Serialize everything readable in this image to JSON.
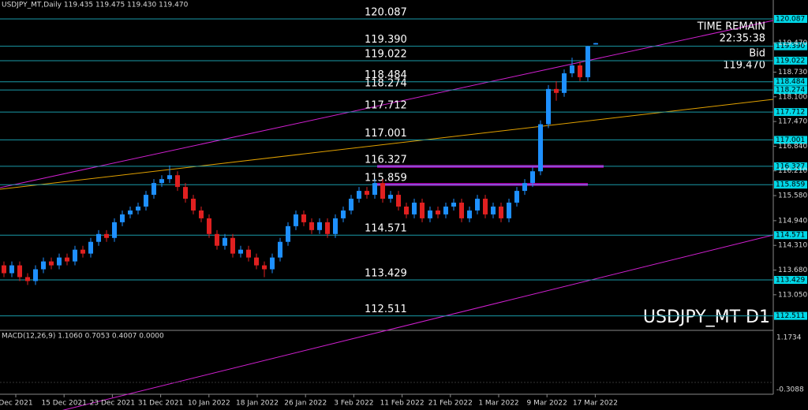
{
  "header": {
    "title": "USDJPY_MT,Daily  119.435 119.475 119.430 119.470",
    "time_remain_label": "TIME REMAIN",
    "time_remain": "22:35:38",
    "bid_label": "Bid",
    "bid": "119.470",
    "symbol": "USDJPY_MT D1"
  },
  "levels": [
    "120.087",
    "119.390",
    "119.022",
    "118.484",
    "118.274",
    "117.712",
    "117.001",
    "116.327",
    "115.859",
    "114.571",
    "113.429",
    "112.511"
  ],
  "axis_prices": [
    "119.470",
    "118.730",
    "118.100",
    "117.470",
    "116.840",
    "116.210",
    "115.580",
    "114.940",
    "114.310",
    "113.680",
    "113.050"
  ],
  "macd": {
    "label": "MACD(12,26,9) 1.1060 0.7053 0.4007 0.0000",
    "axis": [
      "1.1734",
      "-0.3088"
    ]
  },
  "dates": [
    "Dec 2021",
    "15 Dec 2021",
    "23 Dec 2021",
    "31 Dec 2021",
    "10 Jan 2022",
    "18 Jan 2022",
    "26 Jan 2022",
    "3 Feb 2022",
    "11 Feb 2022",
    "21 Feb 2022",
    "1 Mar 2022",
    "9 Mar 2022",
    "17 Mar 2022"
  ],
  "candles": [
    [
      113.8,
      113.9,
      113.5,
      113.6
    ],
    [
      113.6,
      113.9,
      113.5,
      113.8
    ],
    [
      113.8,
      113.9,
      113.4,
      113.5
    ],
    [
      113.5,
      113.6,
      113.3,
      113.4
    ],
    [
      113.4,
      113.8,
      113.3,
      113.7
    ],
    [
      113.7,
      114.0,
      113.6,
      113.9
    ],
    [
      113.9,
      114.0,
      113.7,
      113.8
    ],
    [
      113.8,
      114.1,
      113.7,
      114.0
    ],
    [
      114.0,
      114.1,
      113.8,
      113.9
    ],
    [
      113.9,
      114.3,
      113.8,
      114.2
    ],
    [
      114.2,
      114.3,
      114.0,
      114.1
    ],
    [
      114.1,
      114.5,
      114.0,
      114.4
    ],
    [
      114.4,
      114.7,
      114.3,
      114.6
    ],
    [
      114.6,
      114.7,
      114.4,
      114.5
    ],
    [
      114.5,
      115.0,
      114.4,
      114.9
    ],
    [
      114.9,
      115.2,
      114.8,
      115.1
    ],
    [
      115.1,
      115.3,
      115.0,
      115.2
    ],
    [
      115.2,
      115.4,
      115.1,
      115.3
    ],
    [
      115.3,
      115.7,
      115.2,
      115.6
    ],
    [
      115.6,
      116.0,
      115.5,
      115.9
    ],
    [
      115.9,
      116.1,
      115.8,
      116.0
    ],
    [
      116.0,
      116.35,
      115.9,
      116.1
    ],
    [
      116.1,
      116.2,
      115.7,
      115.8
    ],
    [
      115.8,
      115.9,
      115.4,
      115.5
    ],
    [
      115.5,
      115.6,
      115.1,
      115.2
    ],
    [
      115.2,
      115.3,
      114.9,
      115.0
    ],
    [
      115.0,
      115.1,
      114.5,
      114.6
    ],
    [
      114.6,
      114.7,
      114.2,
      114.3
    ],
    [
      114.3,
      114.6,
      114.2,
      114.5
    ],
    [
      114.5,
      114.6,
      114.0,
      114.1
    ],
    [
      114.1,
      114.3,
      114.0,
      114.2
    ],
    [
      114.2,
      114.3,
      113.9,
      114.0
    ],
    [
      114.0,
      114.1,
      113.7,
      113.8
    ],
    [
      113.8,
      113.9,
      113.5,
      113.7
    ],
    [
      113.7,
      114.1,
      113.6,
      114.0
    ],
    [
      114.0,
      114.5,
      113.9,
      114.4
    ],
    [
      114.4,
      114.9,
      114.3,
      114.8
    ],
    [
      114.8,
      115.2,
      114.7,
      115.1
    ],
    [
      115.1,
      115.2,
      114.8,
      114.9
    ],
    [
      114.9,
      115.0,
      114.6,
      114.7
    ],
    [
      114.7,
      115.0,
      114.6,
      114.9
    ],
    [
      114.9,
      115.0,
      114.5,
      114.6
    ],
    [
      114.6,
      115.1,
      114.5,
      115.0
    ],
    [
      115.0,
      115.3,
      114.9,
      115.2
    ],
    [
      115.2,
      115.6,
      115.1,
      115.5
    ],
    [
      115.5,
      115.8,
      115.4,
      115.7
    ],
    [
      115.7,
      115.8,
      115.5,
      115.6
    ],
    [
      115.6,
      116.0,
      115.5,
      115.9
    ],
    [
      115.9,
      116.0,
      115.4,
      115.5
    ],
    [
      115.5,
      115.7,
      115.4,
      115.6
    ],
    [
      115.6,
      115.7,
      115.2,
      115.3
    ],
    [
      115.3,
      115.4,
      115.0,
      115.1
    ],
    [
      115.1,
      115.5,
      115.0,
      115.4
    ],
    [
      115.4,
      115.5,
      114.9,
      115.0
    ],
    [
      115.0,
      115.3,
      114.9,
      115.2
    ],
    [
      115.2,
      115.3,
      115.0,
      115.1
    ],
    [
      115.1,
      115.4,
      115.0,
      115.3
    ],
    [
      115.3,
      115.5,
      115.2,
      115.4
    ],
    [
      115.4,
      115.5,
      114.9,
      115.0
    ],
    [
      115.0,
      115.3,
      114.9,
      115.2
    ],
    [
      115.2,
      115.6,
      115.1,
      115.5
    ],
    [
      115.5,
      115.6,
      115.0,
      115.1
    ],
    [
      115.1,
      115.4,
      115.0,
      115.3
    ],
    [
      115.3,
      115.4,
      114.9,
      115.0
    ],
    [
      115.0,
      115.5,
      114.9,
      115.4
    ],
    [
      115.4,
      115.8,
      115.3,
      115.7
    ],
    [
      115.7,
      116.0,
      115.6,
      115.9
    ],
    [
      115.9,
      116.3,
      115.8,
      116.2
    ],
    [
      116.2,
      117.5,
      116.1,
      117.4
    ],
    [
      117.4,
      118.4,
      117.3,
      118.3
    ],
    [
      118.3,
      118.5,
      118.0,
      118.2
    ],
    [
      118.2,
      118.8,
      118.1,
      118.7
    ],
    [
      118.7,
      119.1,
      118.6,
      118.9
    ],
    [
      118.9,
      119.0,
      118.5,
      118.6
    ],
    [
      118.6,
      119.4,
      118.5,
      119.39
    ],
    [
      119.435,
      119.475,
      119.43,
      119.47
    ]
  ]
}
